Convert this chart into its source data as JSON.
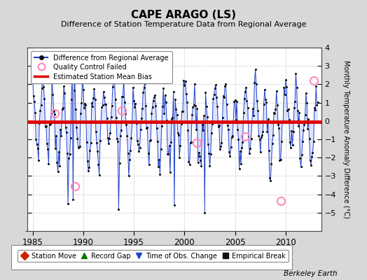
{
  "title": "CAPE ARAGO (LS)",
  "subtitle": "Difference of Station Temperature Data from Regional Average",
  "ylabel": "Monthly Temperature Anomaly Difference (°C)",
  "xlabel_years": [
    1985,
    1990,
    1995,
    2000,
    2005,
    2010
  ],
  "ylim": [
    -6,
    4
  ],
  "yticks": [
    -5,
    -4,
    -3,
    -2,
    -1,
    0,
    1,
    2,
    3,
    4
  ],
  "xlim": [
    1984.5,
    2013.5
  ],
  "bias_line_y": -0.05,
  "bias_color": "#dd0000",
  "line_color": "#2244cc",
  "fill_color": "#aabbff",
  "dot_color": "#111111",
  "qc_color": "#ff88bb",
  "background_color": "#d8d8d8",
  "plot_bg_color": "#ffffff",
  "watermark": "Berkeley Earth",
  "legend1_items": [
    {
      "label": "Difference from Regional Average",
      "color": "#2244cc",
      "marker": "o",
      "lw": 1.5
    },
    {
      "label": "Quality Control Failed",
      "color": "#ff88bb",
      "marker": "o",
      "lw": 0
    },
    {
      "label": "Estimated Station Mean Bias",
      "color": "#dd0000",
      "marker": "",
      "lw": 2
    }
  ],
  "legend2_items": [
    {
      "label": "Station Move",
      "color": "#cc2200",
      "marker": "D"
    },
    {
      "label": "Record Gap",
      "color": "#007700",
      "marker": "^"
    },
    {
      "label": "Time of Obs. Change",
      "color": "#2244cc",
      "marker": "v"
    },
    {
      "label": "Empirical Break",
      "color": "#111111",
      "marker": "s"
    }
  ]
}
